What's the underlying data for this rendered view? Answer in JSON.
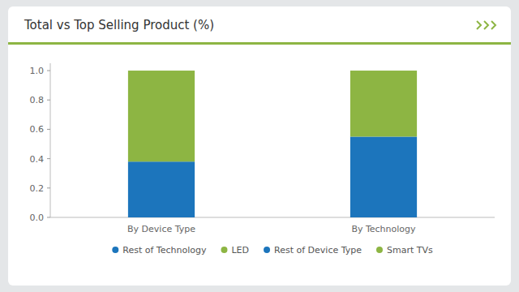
{
  "chart_data": {
    "type": "bar",
    "title": "Total vs Top Selling Product (%)",
    "categories": [
      "By Device Type",
      "By Technology"
    ],
    "stacked": true,
    "series": [
      {
        "name": "Rest of Technology",
        "color": "#1C75BC",
        "values": [
          null,
          0.55
        ]
      },
      {
        "name": "LED",
        "color": "#8DB543",
        "values": [
          null,
          0.45
        ]
      },
      {
        "name": "Rest of Device Type",
        "color": "#1C75BC",
        "values": [
          0.38,
          null
        ]
      },
      {
        "name": "Smart TVs",
        "color": "#8DB543",
        "values": [
          0.62,
          null
        ]
      }
    ],
    "ylim": [
      0,
      1.05
    ],
    "yticks": [
      {
        "value": 0.0,
        "label": "0.0"
      },
      0.2,
      0.4,
      0.6,
      0.8,
      {
        "value": 1.0,
        "label": "1.0"
      }
    ],
    "grid": false,
    "legend": "bottom"
  }
}
